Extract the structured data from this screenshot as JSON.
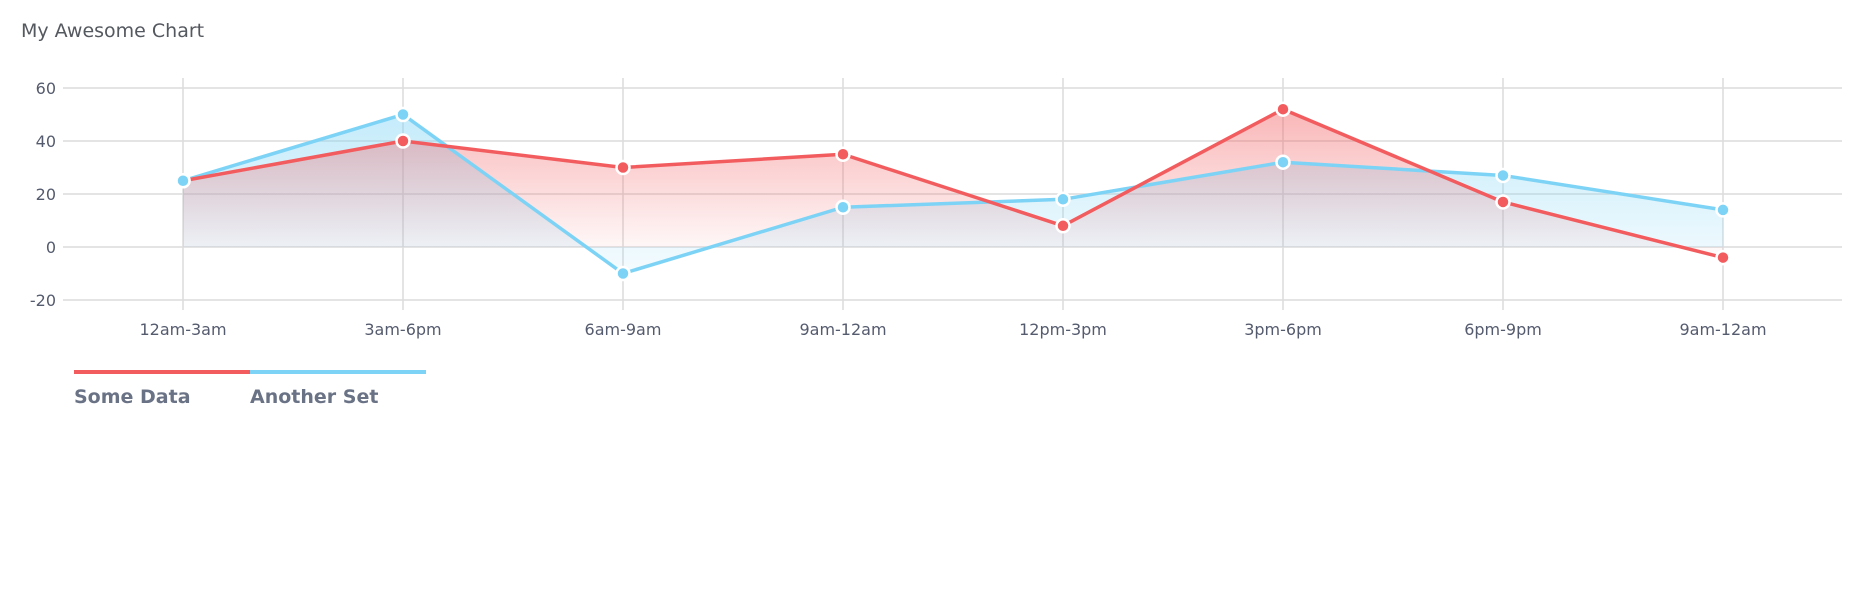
{
  "title": "My Awesome Chart",
  "chart_data": {
    "type": "line",
    "title": "My Awesome Chart",
    "categories": [
      "12am-3am",
      "3am-6pm",
      "6am-9am",
      "9am-12am",
      "12pm-3pm",
      "3pm-6pm",
      "6pm-9pm",
      "9am-12am"
    ],
    "series": [
      {
        "name": "Some Data",
        "values": [
          25,
          40,
          30,
          35,
          8,
          52,
          17,
          -4
        ],
        "color": "#f25c5f"
      },
      {
        "name": "Another Set",
        "values": [
          25,
          50,
          -10,
          15,
          18,
          32,
          27,
          14
        ],
        "color": "#7dd3f5"
      }
    ],
    "ylim": [
      -20,
      60
    ],
    "yticks": [
      "-20",
      "0",
      "20",
      "40",
      "60"
    ],
    "grid": true,
    "area_fill": true,
    "legend_position": "bottom-left"
  }
}
